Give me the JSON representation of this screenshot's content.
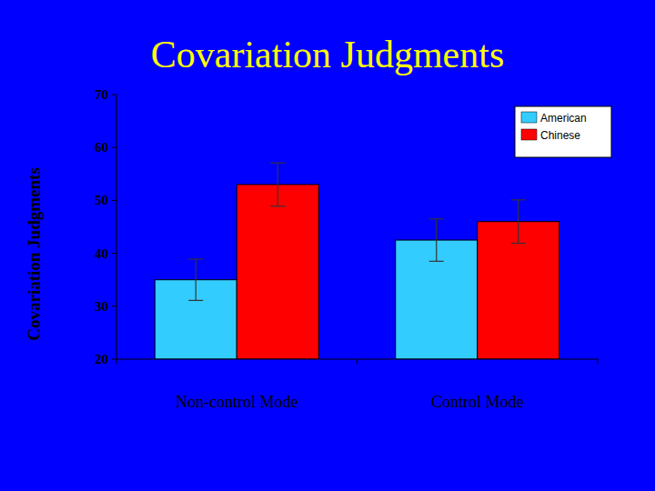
{
  "chart_data": {
    "type": "bar",
    "title": "Covariation Judgments",
    "y_label": "Covariation Judgments",
    "categories": [
      "Non-control Mode",
      "Control Mode"
    ],
    "series": [
      {
        "name": "American",
        "color": "#33ccff",
        "values": [
          35,
          42.5
        ],
        "errors": [
          3.9,
          4
        ]
      },
      {
        "name": "Chinese",
        "color": "#ff0000",
        "values": [
          53,
          46
        ],
        "errors": [
          4.1,
          4.1
        ]
      }
    ],
    "ylim": [
      20,
      70
    ],
    "yticks": [
      20,
      30,
      40,
      50,
      60,
      70
    ],
    "legend": "top-right"
  }
}
